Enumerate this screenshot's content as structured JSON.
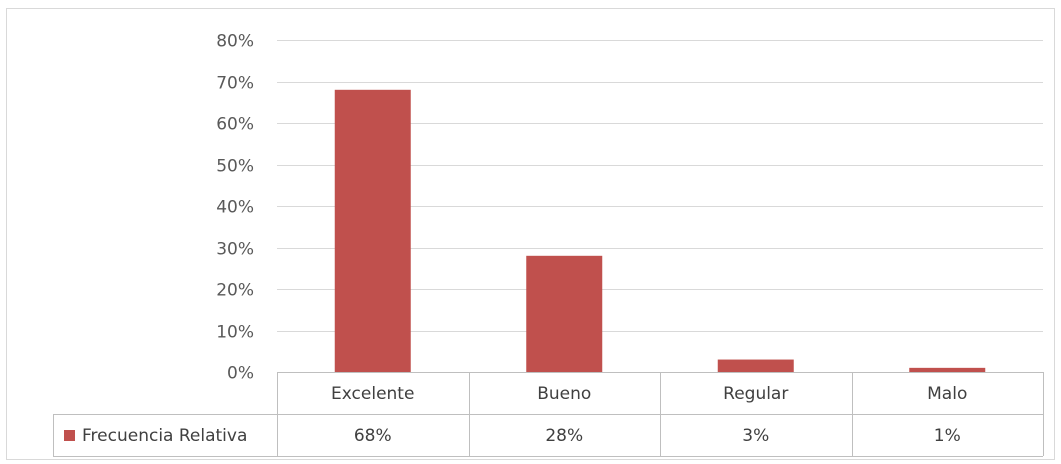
{
  "chart_data": {
    "type": "bar",
    "categories": [
      "Excelente",
      "Bueno",
      "Regular",
      "Malo"
    ],
    "series": [
      {
        "name": "Frecuencia Relativa",
        "values": [
          0.68,
          0.28,
          0.03,
          0.01
        ],
        "color": "#c0504d"
      }
    ],
    "data_table_labels": [
      "68%",
      "28%",
      "3%",
      "1%"
    ],
    "y_ticks": [
      "0%",
      "10%",
      "20%",
      "30%",
      "40%",
      "50%",
      "60%",
      "70%",
      "80%"
    ],
    "ylim": [
      0,
      0.8
    ],
    "grid": true,
    "legend": "data-table"
  }
}
